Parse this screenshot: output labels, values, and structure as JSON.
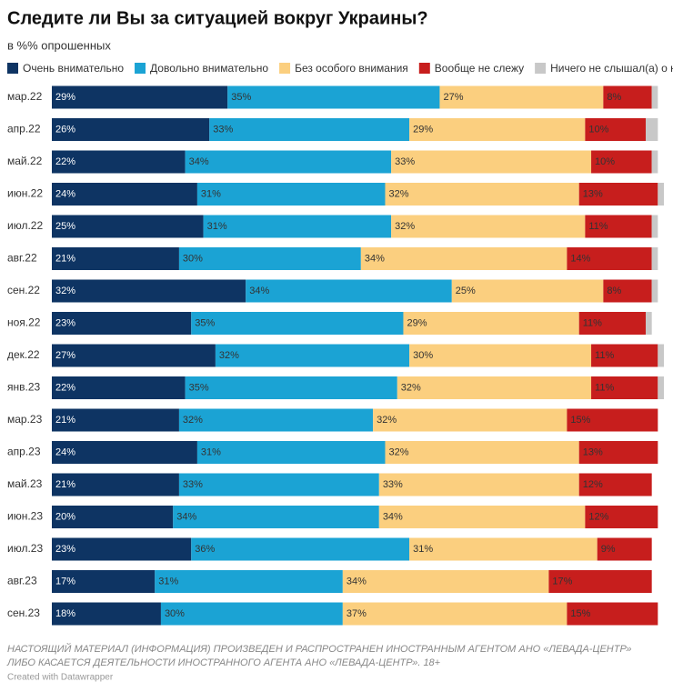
{
  "chart_data": {
    "type": "stacked-bar-horizontal",
    "title": "Следите ли Вы за ситуацией вокруг Украины?",
    "subtitle": "в %% опрошенных",
    "categories": [
      "мар.22",
      "апр.22",
      "май.22",
      "июн.22",
      "июл.22",
      "авг.22",
      "сен.22",
      "ноя.22",
      "дек.22",
      "янв.23",
      "мар.23",
      "апр.23",
      "май.23",
      "июн.23",
      "июл.23",
      "авг.23",
      "сен.23"
    ],
    "series": [
      {
        "name": "Очень внимательно",
        "color": "#0e3463",
        "values": [
          29,
          26,
          22,
          24,
          25,
          21,
          32,
          23,
          27,
          22,
          21,
          24,
          21,
          20,
          23,
          17,
          18
        ],
        "value_labels": [
          "29%",
          "26%",
          "22%",
          "24%",
          "25%",
          "21%",
          "32%",
          "23%",
          "27%",
          "22%",
          "21%",
          "24%",
          "21%",
          "20%",
          "23%",
          "17%",
          "18%"
        ]
      },
      {
        "name": "Довольно внимательно",
        "color": "#1ba3d4",
        "values": [
          35,
          33,
          34,
          31,
          31,
          30,
          34,
          35,
          32,
          35,
          32,
          31,
          33,
          34,
          36,
          31,
          30
        ],
        "value_labels": [
          "35%",
          "33%",
          "34%",
          "31%",
          "31%",
          "30%",
          "34%",
          "35%",
          "32%",
          "35%",
          "32%",
          "31%",
          "33%",
          "34%",
          "36%",
          "31%",
          "30%"
        ]
      },
      {
        "name": "Без особого внимания",
        "color": "#fbcf7f",
        "values": [
          27,
          29,
          33,
          32,
          32,
          34,
          25,
          29,
          30,
          32,
          32,
          32,
          33,
          34,
          31,
          34,
          37
        ],
        "value_labels": [
          "27%",
          "29%",
          "33%",
          "32%",
          "32%",
          "34%",
          "25%",
          "29%",
          "30%",
          "32%",
          "32%",
          "32%",
          "33%",
          "34%",
          "31%",
          "34%",
          "37%"
        ]
      },
      {
        "name": "Вообще не слежу",
        "color": "#c71e1d",
        "values": [
          8,
          10,
          10,
          13,
          11,
          14,
          8,
          11,
          11,
          11,
          15,
          13,
          12,
          12,
          9,
          17,
          15
        ],
        "value_labels": [
          "8%",
          "10%",
          "10%",
          "13%",
          "11%",
          "14%",
          "8%",
          "11%",
          "11%",
          "11%",
          "15%",
          "13%",
          "12%",
          "12%",
          "9%",
          "17%",
          "15%"
        ]
      },
      {
        "name": "Ничего не слышал(а) о ней",
        "color": "#c8c8c8",
        "values": [
          1,
          2,
          1,
          1,
          1,
          1,
          1,
          1,
          1,
          1,
          0,
          0,
          0,
          0,
          0,
          0,
          0
        ]
      }
    ],
    "xlim": [
      0,
      101
    ],
    "footnote": [
      "НАСТОЯЩИЙ МАТЕРИАЛ (ИНФОРМАЦИЯ) ПРОИЗВЕДЕН И РАСПРОСТРАНЕН ИНОСТРАННЫМ АГЕНТОМ АНО «ЛЕВАДА-ЦЕНТР»",
      "ЛИБО КАСАЕТСЯ ДЕЯТЕЛЬНОСТИ ИНОСТРАННОГО АГЕНТА АНО «ЛЕВАДА-ЦЕНТР». 18+"
    ],
    "credit": "Created with Datawrapper"
  }
}
